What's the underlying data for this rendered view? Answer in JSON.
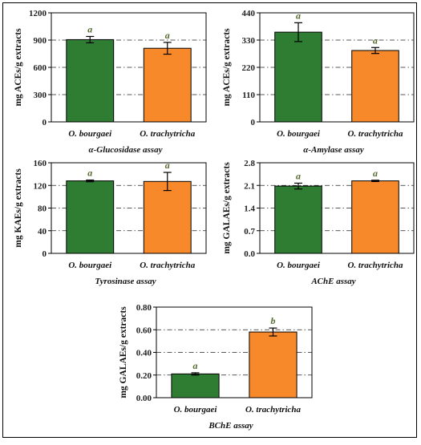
{
  "chart_data": [
    {
      "type": "bar",
      "title": "",
      "xlabel": "α-Glucosidase assay",
      "ylabel": "mg ACEs/g extracts",
      "categories": [
        "O. bourgaei",
        "O. trachytricha"
      ],
      "values": [
        905,
        810
      ],
      "errors": [
        35,
        65
      ],
      "significance": [
        "a",
        "a"
      ],
      "colors": [
        "#2f7d32",
        "#f7892a"
      ],
      "ylim": [
        0,
        1200
      ],
      "yticks": [
        "0",
        "300",
        "600",
        "900",
        "1200"
      ],
      "grid": true
    },
    {
      "type": "bar",
      "title": "",
      "xlabel": "α-Amylase assay",
      "ylabel": "mg ACEs/g extracts",
      "categories": [
        "O. bourgaei",
        "O. trachytricha"
      ],
      "values": [
        362,
        288
      ],
      "errors": [
        38,
        12
      ],
      "significance": [
        "a",
        "a"
      ],
      "colors": [
        "#2f7d32",
        "#f7892a"
      ],
      "ylim": [
        0,
        440
      ],
      "yticks": [
        "0",
        "110",
        "220",
        "330",
        "440"
      ],
      "grid": true
    },
    {
      "type": "bar",
      "title": "",
      "xlabel": "Tyrosinase assay",
      "ylabel": "mg KAEs/g extracts",
      "categories": [
        "O. bourgaei",
        "O. trachytricha"
      ],
      "values": [
        128,
        127
      ],
      "errors": [
        1.5,
        16
      ],
      "significance": [
        "a",
        "a"
      ],
      "colors": [
        "#2f7d32",
        "#f7892a"
      ],
      "ylim": [
        0,
        160
      ],
      "yticks": [
        "0",
        "40",
        "80",
        "120",
        "160"
      ],
      "grid": true
    },
    {
      "type": "bar",
      "title": "",
      "xlabel": "AChE assay",
      "ylabel": "mg GALAEs/g extracts",
      "categories": [
        "O. bourgaei",
        "O. trachytricha"
      ],
      "values": [
        2.08,
        2.24
      ],
      "errors": [
        0.09,
        0.02
      ],
      "significance": [
        "a",
        "a"
      ],
      "colors": [
        "#2f7d32",
        "#f7892a"
      ],
      "ylim": [
        0,
        2.8
      ],
      "yticks": [
        "0.0",
        "0.7",
        "1.4",
        "2.1",
        "2.8"
      ],
      "grid": true
    },
    {
      "type": "bar",
      "title": "",
      "xlabel": "BChE assay",
      "ylabel": "mg GALAEs/g extracts",
      "categories": [
        "O. bourgaei",
        "O. trachytricha"
      ],
      "values": [
        0.21,
        0.58
      ],
      "errors": [
        0.01,
        0.035
      ],
      "significance": [
        "a",
        "b"
      ],
      "colors": [
        "#2f7d32",
        "#f7892a"
      ],
      "ylim": [
        0,
        0.8
      ],
      "yticks": [
        "0.00",
        "0.20",
        "0.40",
        "0.60",
        "0.80"
      ],
      "grid": true
    }
  ]
}
